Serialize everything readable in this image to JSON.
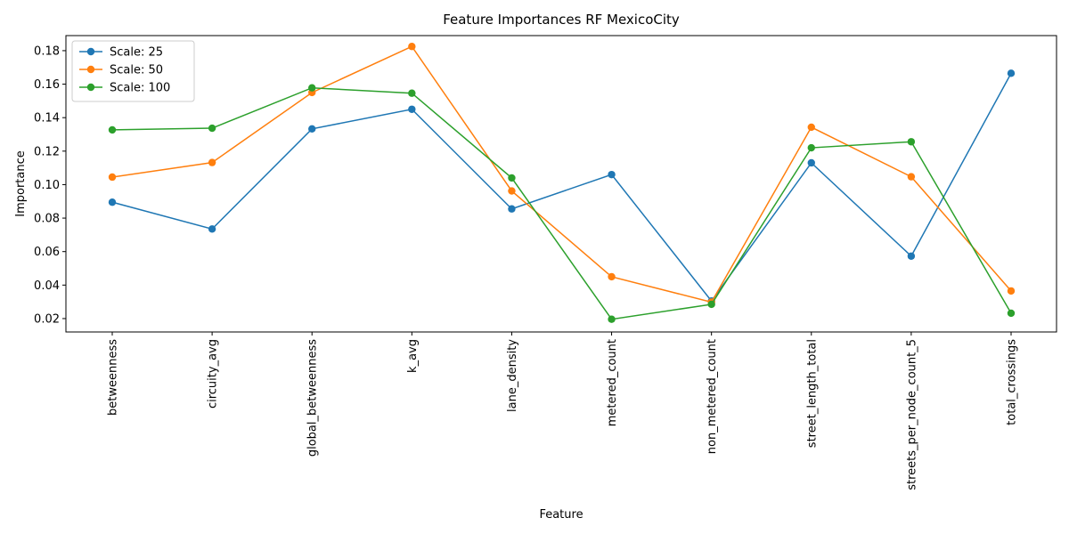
{
  "chart_data": {
    "type": "line",
    "title": "Feature Importances RF MexicoCity",
    "xlabel": "Feature",
    "ylabel": "Importance",
    "categories": [
      "betweenness",
      "circuity_avg",
      "global_betweenness",
      "k_avg",
      "lane_density",
      "metered_count",
      "non_metered_count",
      "street_length_total",
      "streets_per_node_count_5",
      "total_crossings"
    ],
    "ylim": [
      0.012,
      0.189
    ],
    "yticks": [
      "0.02",
      "0.04",
      "0.06",
      "0.08",
      "0.10",
      "0.12",
      "0.14",
      "0.16",
      "0.18"
    ],
    "grid": false,
    "legend_position": "top-left",
    "series": [
      {
        "name": "Scale: 25",
        "color": "#1f77b4",
        "values": [
          0.0895,
          0.0735,
          0.1333,
          0.145,
          0.0855,
          0.106,
          0.0305,
          0.113,
          0.0573,
          0.1665
        ]
      },
      {
        "name": "Scale: 50",
        "color": "#ff7f0e",
        "values": [
          0.1045,
          0.1132,
          0.155,
          0.1825,
          0.0962,
          0.045,
          0.0298,
          0.1343,
          0.1047,
          0.0365
        ]
      },
      {
        "name": "Scale: 100",
        "color": "#2ca02c",
        "values": [
          0.1327,
          0.1337,
          0.1578,
          0.1546,
          0.104,
          0.0196,
          0.0285,
          0.122,
          0.1256,
          0.0232
        ]
      }
    ]
  }
}
